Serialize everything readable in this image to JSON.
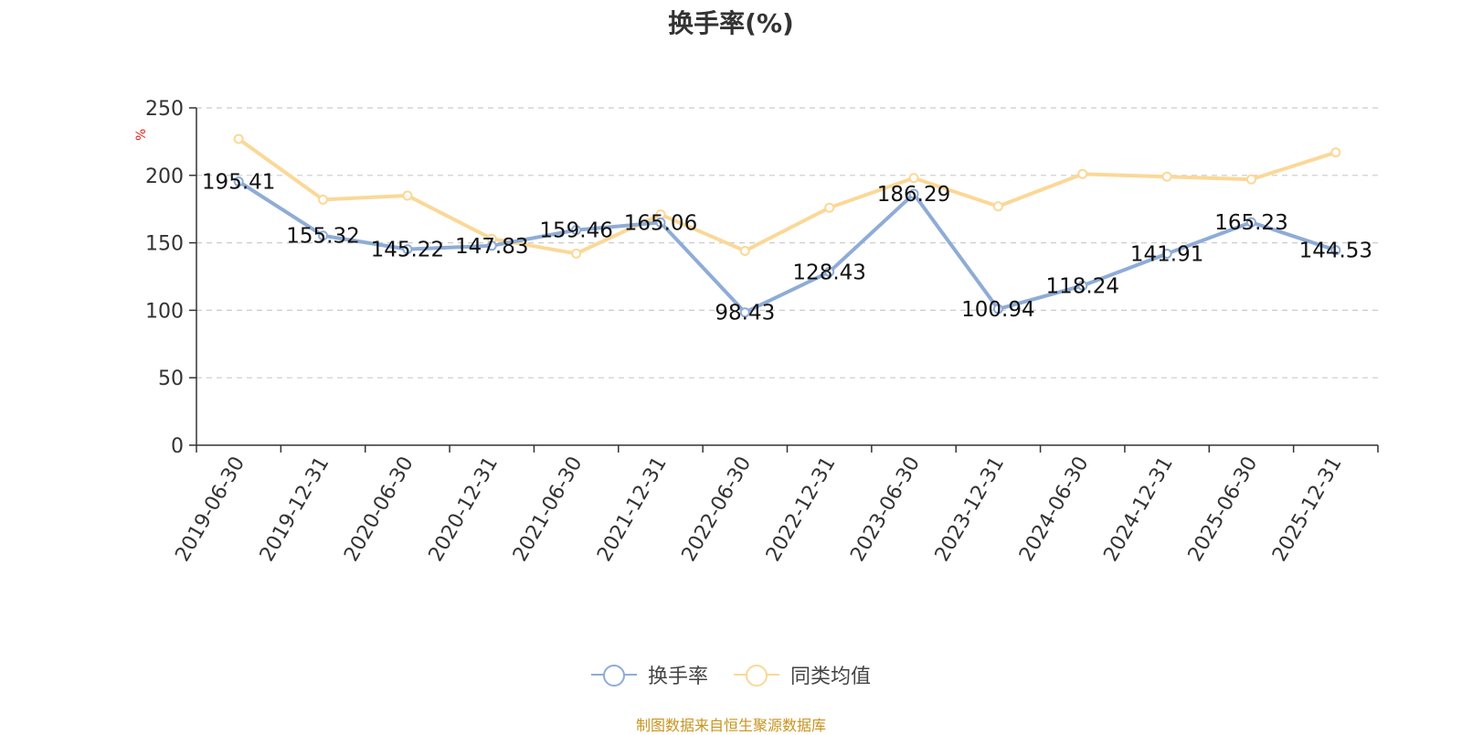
{
  "title": "换手率(%)",
  "source_note": "制图数据来自恒生聚源数据库",
  "chart_data": {
    "type": "line",
    "title": "换手率(%)",
    "ylabel": "%",
    "xlabel": "",
    "ylim": [
      0,
      250
    ],
    "yticks": [
      0,
      50,
      100,
      150,
      200,
      250
    ],
    "grid": true,
    "legend_position": "bottom",
    "categories": [
      "2019-06-30",
      "2019-12-31",
      "2020-06-30",
      "2020-12-31",
      "2021-06-30",
      "2021-12-31",
      "2022-06-30",
      "2022-12-31",
      "2023-06-30",
      "2023-12-31",
      "2024-06-30",
      "2024-12-31",
      "2025-06-30",
      "2025-12-31"
    ],
    "series": [
      {
        "name": "换手率",
        "color": "#8eacd6",
        "values": [
          195.41,
          155.32,
          145.22,
          147.83,
          159.46,
          165.06,
          98.43,
          128.43,
          186.29,
          100.94,
          118.24,
          141.91,
          165.23,
          144.53
        ],
        "labels_shown": true
      },
      {
        "name": "同类均值",
        "color": "#fbd897",
        "values": [
          227,
          182,
          185,
          153,
          142,
          171,
          144,
          176,
          198,
          177,
          201,
          199,
          197,
          217
        ],
        "labels_shown": false
      }
    ]
  }
}
